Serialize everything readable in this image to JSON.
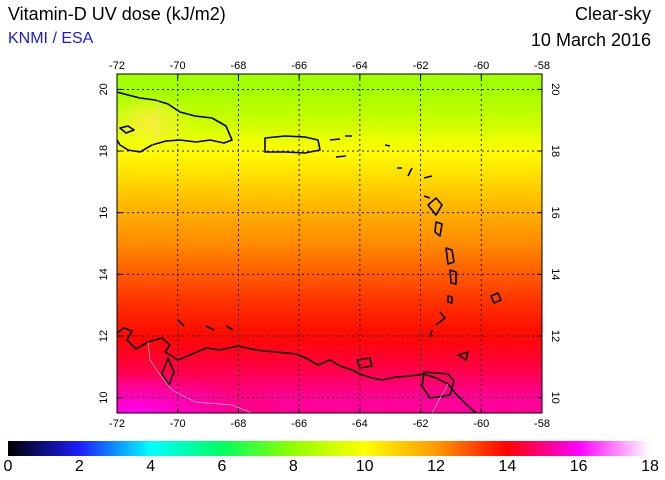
{
  "header": {
    "title": "Vitamin-D UV dose (kJ/m2)",
    "credit": "KNMI / ESA",
    "mode": "Clear-sky",
    "date": "10 March 2016"
  },
  "map": {
    "region": "Caribbean Sea",
    "lon_range": [
      -72,
      -58
    ],
    "lat_range": [
      9.5,
      20.5
    ],
    "lon_ticks": [
      "-72",
      "-70",
      "-68",
      "-66",
      "-64",
      "-62",
      "-60",
      "-58"
    ],
    "lat_ticks": [
      "10",
      "12",
      "14",
      "16",
      "18",
      "20"
    ],
    "grid": true,
    "dose_by_latitude": [
      {
        "lat": 20,
        "dose": 8.3
      },
      {
        "lat": 19,
        "dose": 9.0
      },
      {
        "lat": 18,
        "dose": 10.0
      },
      {
        "lat": 17,
        "dose": 10.8
      },
      {
        "lat": 16,
        "dose": 11.6
      },
      {
        "lat": 15,
        "dose": 12.2
      },
      {
        "lat": 14,
        "dose": 12.8
      },
      {
        "lat": 13,
        "dose": 13.4
      },
      {
        "lat": 12,
        "dose": 13.9
      },
      {
        "lat": 11,
        "dose": 14.5
      },
      {
        "lat": 10,
        "dose": 15.2
      }
    ]
  },
  "colorbar": {
    "range": [
      0,
      18
    ],
    "labels": [
      "0",
      "2",
      "4",
      "6",
      "8",
      "10",
      "12",
      "14",
      "16",
      "18"
    ],
    "stops": [
      "#000000",
      "#1c1cff",
      "#00ffff",
      "#00ff60",
      "#90ff00",
      "#ffff00",
      "#ff9a00",
      "#ff0000",
      "#ff00ff",
      "#ffffff"
    ]
  }
}
